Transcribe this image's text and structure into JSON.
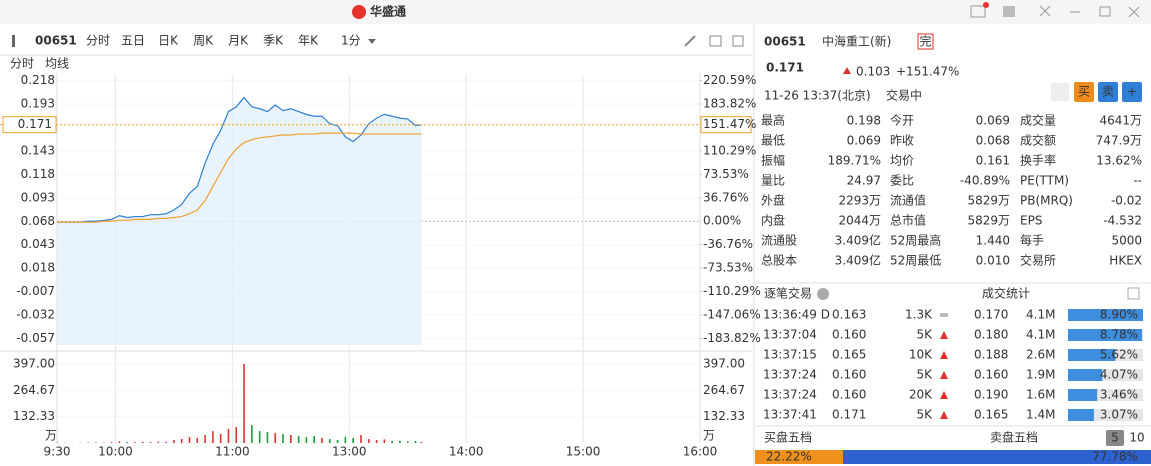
{
  "title_bar": {
    "brand": "华盛通"
  },
  "toolbar": {
    "code": "00651",
    "tabs": [
      "分时",
      "五日",
      "日K",
      "周K",
      "月K",
      "季K",
      "年K"
    ],
    "active_tab": 0,
    "interval": "1分"
  },
  "chart_data": {
    "type": "line",
    "x": [
      0,
      4,
      8,
      12,
      16,
      20,
      24,
      28,
      32,
      36,
      40,
      44,
      48,
      52,
      56,
      60,
      64,
      68,
      72,
      76,
      80,
      84,
      88,
      92,
      96,
      100,
      104,
      108,
      112,
      116,
      120,
      124,
      128,
      132,
      136,
      140,
      144,
      148,
      152,
      156,
      160,
      164,
      168,
      172,
      176,
      180,
      184,
      187
    ],
    "xlim": [
      0,
      330
    ],
    "xticks": [
      {
        "value": 0,
        "label": "9:30"
      },
      {
        "value": 30,
        "label": "10:00"
      },
      {
        "value": 90,
        "label": "11:00"
      },
      {
        "value": 150,
        "label": "13:00"
      },
      {
        "value": 210,
        "label": "14:00"
      },
      {
        "value": 270,
        "label": "15:00"
      },
      {
        "value": 330,
        "label": "16:00"
      }
    ],
    "ylim": [
      -0.064,
      0.224
    ],
    "yticks": [
      0.218,
      0.193,
      0.143,
      0.118,
      0.093,
      0.068,
      0.043,
      0.018,
      -0.007,
      -0.032,
      -0.057
    ],
    "base": 0.068,
    "y2lim": [
      -194.12,
      229.41
    ],
    "y2ticks": [
      {
        "value": 220.59,
        "label": "220.59%"
      },
      {
        "value": 183.82,
        "label": "183.82%"
      },
      {
        "value": 110.29,
        "label": "110.29%"
      },
      {
        "value": 73.53,
        "label": "73.53%"
      },
      {
        "value": 36.76,
        "label": "36.76%"
      },
      {
        "value": 0,
        "label": "0.00%"
      },
      {
        "value": -36.76,
        "label": "-36.76%"
      },
      {
        "value": -73.53,
        "label": "-73.53%"
      },
      {
        "value": -110.29,
        "label": "-110.29%"
      },
      {
        "value": -147.06,
        "label": "-147.06%"
      },
      {
        "value": -183.82,
        "label": "-183.82%"
      }
    ],
    "last_value": 0.171,
    "last_pct": {
      "value": 151.47,
      "label": "151.47%"
    },
    "series": [
      {
        "name": "分时",
        "color": "#2f7fd6",
        "values": [
          0.067,
          0.067,
          0.067,
          0.067,
          0.068,
          0.068,
          0.069,
          0.07,
          0.074,
          0.072,
          0.073,
          0.073,
          0.075,
          0.075,
          0.076,
          0.08,
          0.086,
          0.098,
          0.105,
          0.13,
          0.15,
          0.165,
          0.185,
          0.19,
          0.2,
          0.19,
          0.188,
          0.185,
          0.192,
          0.186,
          0.188,
          0.185,
          0.182,
          0.18,
          0.18,
          0.172,
          0.17,
          0.158,
          0.153,
          0.16,
          0.172,
          0.178,
          0.182,
          0.18,
          0.178,
          0.177,
          0.17,
          0.171
        ]
      },
      {
        "name": "均线",
        "color": "#f0a030",
        "values": [
          0.067,
          0.067,
          0.067,
          0.067,
          0.067,
          0.067,
          0.068,
          0.068,
          0.069,
          0.069,
          0.07,
          0.07,
          0.07,
          0.071,
          0.071,
          0.072,
          0.073,
          0.076,
          0.08,
          0.09,
          0.105,
          0.12,
          0.135,
          0.145,
          0.152,
          0.155,
          0.157,
          0.158,
          0.159,
          0.16,
          0.16,
          0.161,
          0.161,
          0.161,
          0.162,
          0.162,
          0.162,
          0.162,
          0.162,
          0.161,
          0.161,
          0.161,
          0.161,
          0.161,
          0.161,
          0.161,
          0.161,
          0.161
        ]
      }
    ],
    "volume": {
      "unit": "万",
      "ylim": [
        0,
        432
      ],
      "yticks": [
        {
          "value": 397,
          "label": "397.00"
        },
        {
          "value": 264.67,
          "label": "264.67"
        },
        {
          "value": 132.33,
          "label": "132.33"
        }
      ],
      "up_color": "#e0302c",
      "down_color": "#1a9a3a",
      "values": [
        2,
        1,
        1,
        1,
        2,
        3,
        2,
        4,
        8,
        5,
        4,
        6,
        5,
        7,
        6,
        15,
        20,
        30,
        25,
        40,
        60,
        45,
        70,
        80,
        397,
        90,
        60,
        55,
        50,
        45,
        40,
        35,
        30,
        35,
        25,
        20,
        15,
        30,
        25,
        40,
        20,
        15,
        18,
        10,
        12,
        8,
        10,
        5
      ]
    },
    "grid": true
  },
  "quote": {
    "code": "00651",
    "name": "中海重工(新)",
    "badge": "完",
    "price": "0.171",
    "change": "0.103",
    "change_pct": "+151.47%",
    "time": "11-26 13:37(北京)",
    "status": "交易中",
    "buttons": [
      "买",
      "卖",
      "+"
    ]
  },
  "stats": [
    [
      {
        "label": "最高",
        "value": "0.198",
        "color": "red"
      },
      {
        "label": "今开",
        "value": "0.069",
        "color": "red"
      },
      {
        "label": "成交量",
        "value": "4641万"
      }
    ],
    [
      {
        "label": "最低",
        "value": "0.069",
        "color": "red"
      },
      {
        "label": "昨收",
        "value": "0.068"
      },
      {
        "label": "成交额",
        "value": "747.9万"
      }
    ],
    [
      {
        "label": "振幅",
        "value": "189.71%"
      },
      {
        "label": "均价",
        "value": "0.161"
      },
      {
        "label": "换手率",
        "value": "13.62%"
      }
    ],
    [
      {
        "label": "量比",
        "value": "24.97"
      },
      {
        "label": "委比",
        "value": "-40.89%"
      },
      {
        "label": "PE(TTM)",
        "value": "--"
      }
    ],
    [
      {
        "label": "外盘",
        "value": "2293万",
        "color": "red"
      },
      {
        "label": "流通值",
        "value": "5829万"
      },
      {
        "label": "PB(MRQ)",
        "value": "-0.02"
      }
    ],
    [
      {
        "label": "内盘",
        "value": "2044万",
        "color": "green"
      },
      {
        "label": "总市值",
        "value": "5829万"
      },
      {
        "label": "EPS",
        "value": "-4.532"
      }
    ],
    [
      {
        "label": "流通股",
        "value": "3.409亿"
      },
      {
        "label": "52周最高",
        "value": "1.440",
        "color": "red"
      },
      {
        "label": "每手",
        "value": "5000"
      }
    ],
    [
      {
        "label": "总股本",
        "value": "3.409亿"
      },
      {
        "label": "52周最低",
        "value": "0.010",
        "color": "green"
      },
      {
        "label": "交易所",
        "value": "HKEX"
      }
    ]
  ],
  "trades": {
    "title": "逐笔交易",
    "rows": [
      {
        "time": "13:36:49 D",
        "price": "0.163",
        "volume": "1.3K",
        "dir": "flat"
      },
      {
        "time": "13:37:04",
        "price": "0.160",
        "volume": "5K",
        "dir": "up"
      },
      {
        "time": "13:37:15",
        "price": "0.165",
        "volume": "10K",
        "dir": "up"
      },
      {
        "time": "13:37:24",
        "price": "0.160",
        "volume": "5K",
        "dir": "up"
      },
      {
        "time": "13:37:24",
        "price": "0.160",
        "volume": "20K",
        "dir": "up"
      },
      {
        "time": "13:37:41",
        "price": "0.171",
        "volume": "5K",
        "dir": "up"
      }
    ]
  },
  "volume_stats": {
    "title": "成交统计",
    "rows": [
      {
        "price": "0.170",
        "volume": "4.1M",
        "pct": {
          "value": 8.9,
          "label": "8.90%"
        }
      },
      {
        "price": "0.180",
        "volume": "4.1M",
        "pct": {
          "value": 8.78,
          "label": "8.78%"
        }
      },
      {
        "price": "0.188",
        "volume": "2.6M",
        "pct": {
          "value": 5.62,
          "label": "5.62%"
        }
      },
      {
        "price": "0.160",
        "volume": "1.9M",
        "pct": {
          "value": 4.07,
          "label": "4.07%"
        }
      },
      {
        "price": "0.190",
        "volume": "1.6M",
        "pct": {
          "value": 3.46,
          "label": "3.46%"
        }
      },
      {
        "price": "0.165",
        "volume": "1.4M",
        "pct": {
          "value": 3.07,
          "label": "3.07%"
        }
      }
    ]
  },
  "depth": {
    "buy_title": "买盘五档",
    "sell_title": "卖盘五档",
    "levels": [
      "5",
      "10"
    ],
    "active": 0,
    "buy_pct": {
      "value": 22.22,
      "label": "22.22%"
    },
    "sell_pct": {
      "value": 77.78,
      "label": "77.78%"
    }
  }
}
